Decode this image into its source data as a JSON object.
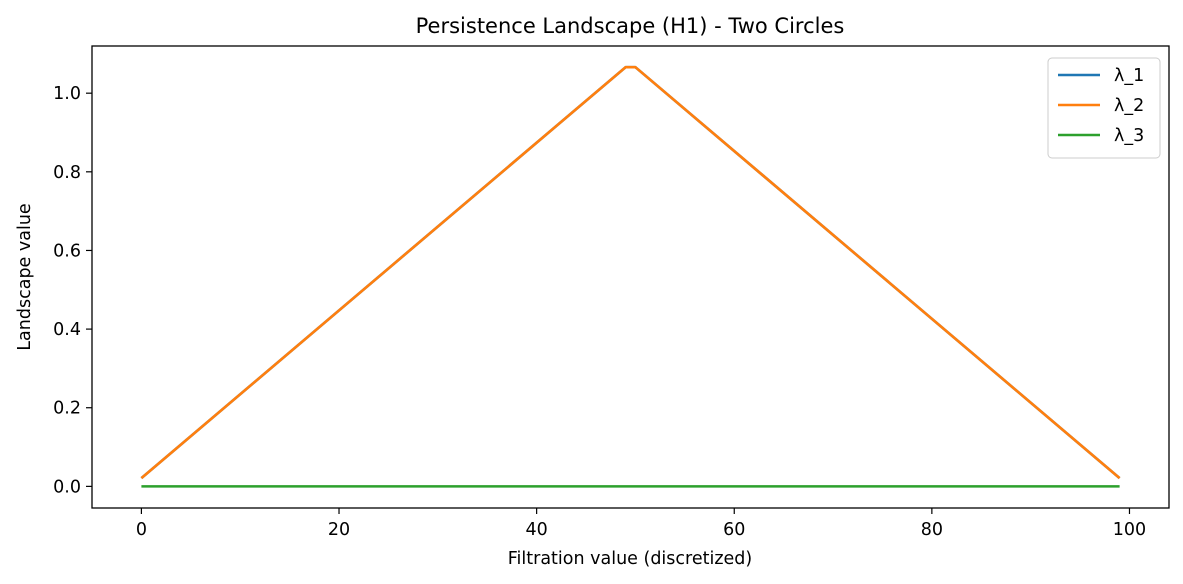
{
  "chart_data": {
    "type": "line",
    "title": "Persistence Landscape (H1) - Two Circles",
    "xlabel": "Filtration value (discretized)",
    "ylabel": "Landscape value",
    "xlim": [
      -5,
      104
    ],
    "ylim": [
      -0.055,
      1.12
    ],
    "xticks": [
      0,
      20,
      40,
      60,
      80,
      100
    ],
    "xtick_labels": [
      "0",
      "20",
      "40",
      "60",
      "80",
      "100"
    ],
    "yticks": [
      0.0,
      0.2,
      0.4,
      0.6,
      0.8,
      1.0
    ],
    "ytick_labels": [
      "0.0",
      "0.2",
      "0.4",
      "0.6",
      "0.8",
      "1.0"
    ],
    "grid": false,
    "legend_position": "top-right",
    "series": [
      {
        "name": "λ_1",
        "color": "#1f77b4",
        "points": [
          [
            0,
            0.021
          ],
          [
            49,
            1.066
          ],
          [
            50,
            1.066
          ],
          [
            99,
            0.021
          ]
        ]
      },
      {
        "name": "λ_2",
        "color": "#ff7f0e",
        "points": [
          [
            0,
            0.021
          ],
          [
            49,
            1.066
          ],
          [
            50,
            1.066
          ],
          [
            99,
            0.021
          ]
        ]
      },
      {
        "name": "λ_3",
        "color": "#2ca02c",
        "points": [
          [
            0,
            0.0
          ],
          [
            99,
            0.0
          ]
        ]
      }
    ]
  }
}
